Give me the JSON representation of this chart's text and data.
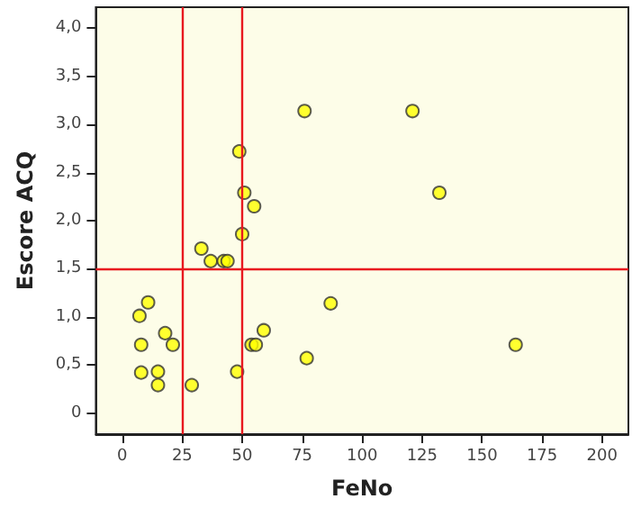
{
  "chart_data": {
    "type": "scatter",
    "xlabel": "FeNo",
    "ylabel": "Escore ACQ",
    "x": [
      76,
      121,
      48.8,
      50.9,
      55,
      132.2,
      50,
      33,
      36.9,
      42.3,
      43.9,
      10.8,
      7.2,
      7.9,
      7.9,
      14.9,
      14.9,
      17.9,
      21.1,
      29,
      47.9,
      53.9,
      55.7,
      59,
      76.9,
      86.9,
      164
    ],
    "series": [
      {
        "color": "#ffff00",
        "values": [
          3.14,
          3.14,
          2.72,
          2.29,
          2.15,
          2.29,
          1.86,
          1.71,
          1.58,
          1.58,
          1.58,
          1.15,
          1.01,
          0.71,
          0.42,
          0.43,
          0.29,
          0.83,
          0.71,
          0.29,
          0.43,
          0.71,
          0.71,
          0.86,
          0.57,
          1.14,
          0.71
        ]
      }
    ],
    "xlim": [
      -11,
      211
    ],
    "ylim": [
      -0.22,
      4.22
    ],
    "xticks": [
      0,
      25,
      50,
      75,
      100,
      125,
      150,
      175,
      200
    ],
    "yticks": [
      0,
      {
        "value": 0.5,
        "label": "0,5"
      },
      {
        "value": 1,
        "label": "1,0"
      },
      {
        "value": 1.5,
        "label": "1,5"
      },
      {
        "value": 2,
        "label": "2,0"
      },
      {
        "value": 2.5,
        "label": "2,5"
      },
      {
        "value": 3,
        "label": "3,0"
      },
      {
        "value": 3.5,
        "label": "3,5"
      },
      {
        "value": 4,
        "label": "4,0"
      }
    ],
    "ref_lines": [
      {
        "axis": "x",
        "value": 25,
        "color": "#e8191f"
      },
      {
        "axis": "x",
        "value": 50,
        "color": "#e8191f"
      },
      {
        "axis": "y",
        "value": 1.5,
        "color": "#e8191f"
      }
    ],
    "marker": "circle",
    "grid": false
  }
}
